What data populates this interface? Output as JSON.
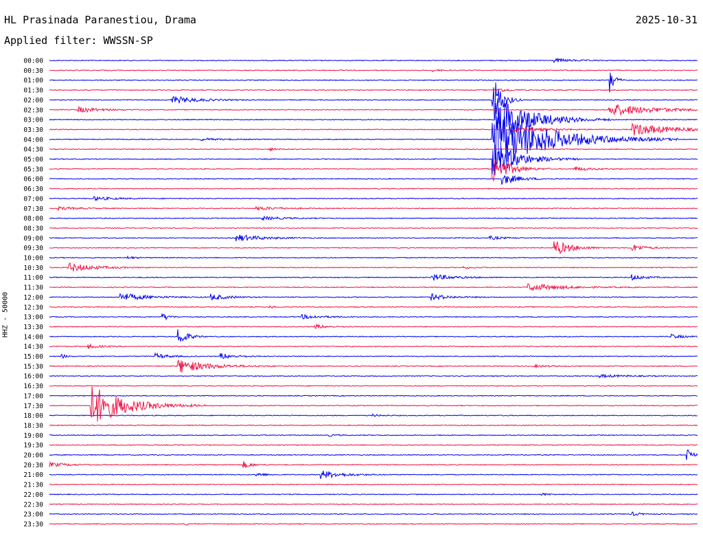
{
  "header": {
    "station": "HL Prasinada Paranestiou, Drama",
    "filter": "Applied filter: WWSSN-SP",
    "date": "2025-10-31",
    "channel_scale": "HHZ - 50000"
  },
  "colors": {
    "trace_a": "#0000ee",
    "trace_b": "#ee1144",
    "background": "#ffffff"
  },
  "chart_data": {
    "type": "line",
    "description_type": "helicorder",
    "ylabels": [
      "00:00",
      "00:30",
      "01:00",
      "01:30",
      "02:00",
      "02:30",
      "03:00",
      "03:30",
      "04:00",
      "04:30",
      "05:00",
      "05:30",
      "06:00",
      "06:30",
      "07:00",
      "07:30",
      "08:00",
      "08:30",
      "09:00",
      "09:30",
      "10:00",
      "10:30",
      "11:00",
      "11:30",
      "12:00",
      "12:30",
      "13:00",
      "13:30",
      "14:00",
      "14:30",
      "15:00",
      "15:30",
      "16:00",
      "16:30",
      "17:00",
      "17:30",
      "18:00",
      "18:30",
      "19:00",
      "19:30",
      "20:00",
      "20:30",
      "21:00",
      "21:30",
      "22:00",
      "22:30",
      "23:00",
      "23:30"
    ],
    "line_minutes": 30,
    "trace_colors": [
      "#0000ee",
      "#ee1144"
    ],
    "events": [
      {
        "line": 0,
        "t": 0.78,
        "amp": 0.25,
        "dur": 0.045
      },
      {
        "line": 1,
        "t": 0.59,
        "amp": 0.15,
        "dur": 0.02
      },
      {
        "line": 2,
        "t": 0.865,
        "amp": 2.2,
        "dur": 0.01
      },
      {
        "line": 3,
        "t": 0.69,
        "amp": 0.3,
        "dur": 0.03
      },
      {
        "line": 4,
        "t": 0.19,
        "amp": 0.55,
        "dur": 0.06
      },
      {
        "line": 4,
        "t": 0.685,
        "amp": 3.8,
        "dur": 0.02
      },
      {
        "line": 5,
        "t": 0.045,
        "amp": 0.4,
        "dur": 0.05
      },
      {
        "line": 5,
        "t": 0.865,
        "amp": 0.9,
        "dur": 0.1
      },
      {
        "line": 6,
        "t": 0.69,
        "amp": 3.6,
        "dur": 0.08
      },
      {
        "line": 7,
        "t": 0.72,
        "amp": 0.4,
        "dur": 0.07
      },
      {
        "line": 7,
        "t": 0.9,
        "amp": 0.9,
        "dur": 0.09
      },
      {
        "line": 8,
        "t": 0.685,
        "amp": 4.4,
        "dur": 0.13
      },
      {
        "line": 8,
        "t": 0.235,
        "amp": 0.15,
        "dur": 0.05
      },
      {
        "line": 9,
        "t": 0.34,
        "amp": 0.2,
        "dur": 0.02
      },
      {
        "line": 10,
        "t": 0.685,
        "amp": 2.5,
        "dur": 0.06
      },
      {
        "line": 11,
        "t": 0.81,
        "amp": 0.3,
        "dur": 0.04
      },
      {
        "line": 11,
        "t": 0.685,
        "amp": 2.0,
        "dur": 0.04
      },
      {
        "line": 12,
        "t": 0.7,
        "amp": 0.8,
        "dur": 0.04
      },
      {
        "line": 14,
        "t": 0.07,
        "amp": 0.25,
        "dur": 0.05
      },
      {
        "line": 15,
        "t": 0.015,
        "amp": 0.2,
        "dur": 0.05
      },
      {
        "line": 15,
        "t": 0.32,
        "amp": 0.25,
        "dur": 0.06
      },
      {
        "line": 16,
        "t": 0.33,
        "amp": 0.25,
        "dur": 0.05
      },
      {
        "line": 18,
        "t": 0.29,
        "amp": 0.5,
        "dur": 0.06
      },
      {
        "line": 18,
        "t": 0.68,
        "amp": 0.25,
        "dur": 0.03
      },
      {
        "line": 19,
        "t": 0.78,
        "amp": 1.1,
        "dur": 0.04
      },
      {
        "line": 19,
        "t": 0.9,
        "amp": 0.5,
        "dur": 0.03
      },
      {
        "line": 20,
        "t": 0.12,
        "amp": 0.2,
        "dur": 0.02
      },
      {
        "line": 21,
        "t": 0.03,
        "amp": 0.65,
        "dur": 0.06
      },
      {
        "line": 21,
        "t": 0.64,
        "amp": 0.15,
        "dur": 0.02
      },
      {
        "line": 22,
        "t": 0.59,
        "amp": 0.5,
        "dur": 0.05
      },
      {
        "line": 22,
        "t": 0.9,
        "amp": 0.4,
        "dur": 0.03
      },
      {
        "line": 23,
        "t": 0.74,
        "amp": 0.55,
        "dur": 0.08
      },
      {
        "line": 24,
        "t": 0.11,
        "amp": 0.6,
        "dur": 0.06
      },
      {
        "line": 24,
        "t": 0.25,
        "amp": 0.45,
        "dur": 0.04
      },
      {
        "line": 24,
        "t": 0.59,
        "amp": 0.45,
        "dur": 0.04
      },
      {
        "line": 25,
        "t": 0.34,
        "amp": 0.2,
        "dur": 0.01
      },
      {
        "line": 26,
        "t": 0.175,
        "amp": 0.55,
        "dur": 0.015
      },
      {
        "line": 26,
        "t": 0.39,
        "amp": 0.3,
        "dur": 0.05
      },
      {
        "line": 27,
        "t": 0.41,
        "amp": 0.3,
        "dur": 0.03
      },
      {
        "line": 28,
        "t": 0.2,
        "amp": 1.3,
        "dur": 0.02
      },
      {
        "line": 28,
        "t": 0.96,
        "amp": 0.3,
        "dur": 0.03
      },
      {
        "line": 29,
        "t": 0.06,
        "amp": 0.3,
        "dur": 0.03
      },
      {
        "line": 30,
        "t": 0.02,
        "amp": 0.3,
        "dur": 0.01
      },
      {
        "line": 30,
        "t": 0.165,
        "amp": 0.4,
        "dur": 0.03
      },
      {
        "line": 30,
        "t": 0.265,
        "amp": 0.45,
        "dur": 0.03
      },
      {
        "line": 31,
        "t": 0.2,
        "amp": 1.0,
        "dur": 0.07
      },
      {
        "line": 31,
        "t": 0.75,
        "amp": 0.15,
        "dur": 0.04
      },
      {
        "line": 32,
        "t": 0.85,
        "amp": 0.2,
        "dur": 0.06
      },
      {
        "line": 35,
        "t": 0.065,
        "amp": 3.0,
        "dur": 0.08
      },
      {
        "line": 36,
        "t": 0.5,
        "amp": 0.15,
        "dur": 0.02
      },
      {
        "line": 38,
        "t": 0.43,
        "amp": 0.15,
        "dur": 0.02
      },
      {
        "line": 40,
        "t": 0.985,
        "amp": 1.2,
        "dur": 0.01
      },
      {
        "line": 41,
        "t": 0.0,
        "amp": 0.35,
        "dur": 0.04
      },
      {
        "line": 41,
        "t": 0.3,
        "amp": 0.5,
        "dur": 0.02
      },
      {
        "line": 42,
        "t": 0.32,
        "amp": 0.3,
        "dur": 0.02
      },
      {
        "line": 42,
        "t": 0.42,
        "amp": 0.6,
        "dur": 0.05
      },
      {
        "line": 44,
        "t": 0.76,
        "amp": 0.15,
        "dur": 0.02
      },
      {
        "line": 46,
        "t": 0.9,
        "amp": 0.25,
        "dur": 0.02
      },
      {
        "line": 47,
        "t": 0.21,
        "amp": 0.2,
        "dur": 0.01
      }
    ]
  }
}
